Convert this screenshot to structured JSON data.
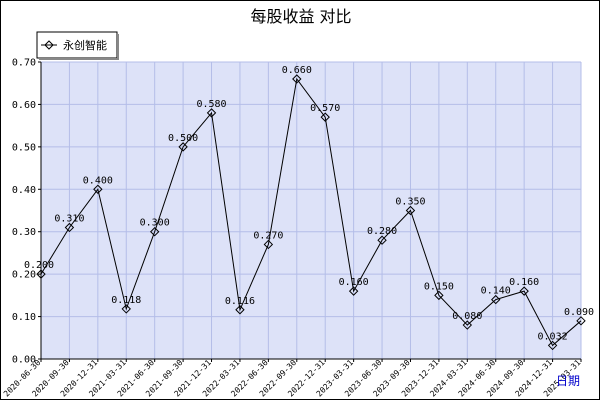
{
  "chart_data": {
    "type": "line",
    "title": "每股收益  对比",
    "xlabel": "日期",
    "ylabel": "",
    "ylim": [
      0,
      0.7
    ],
    "yticks": [
      "0.00",
      "0.10",
      "0.20",
      "0.30",
      "0.40",
      "0.50",
      "0.60",
      "0.70"
    ],
    "grid": true,
    "legend_position": "top-left",
    "plot_background": "#dde2f8",
    "grid_color": "#b4bde8",
    "line_color": "#000000",
    "categories": [
      "2020-06-30",
      "2020-09-30",
      "2020-12-31",
      "2021-03-31",
      "2021-06-30",
      "2021-09-30",
      "2021-12-31",
      "2022-03-31",
      "2022-06-30",
      "2022-09-30",
      "2022-12-31",
      "2023-03-31",
      "2023-06-30",
      "2023-09-30",
      "2023-12-31",
      "2024-03-31",
      "2024-06-30",
      "2024-09-30",
      "2024-12-31",
      "2025-03-31"
    ],
    "series": [
      {
        "name": "永创智能",
        "values": [
          0.2,
          0.31,
          0.4,
          0.118,
          0.3,
          0.5,
          0.58,
          0.116,
          0.27,
          0.66,
          0.57,
          0.16,
          0.28,
          0.35,
          0.15,
          0.08,
          0.14,
          0.16,
          0.032,
          0.09
        ],
        "labels": [
          "0.200",
          "0.310",
          "0.400",
          "0.118",
          "0.300",
          "0.500",
          "0.580",
          "0.116",
          "0.270",
          "0.660",
          "0.570",
          "0.160",
          "0.280",
          "0.350",
          "0.150",
          "0.080",
          "0.140",
          "0.160",
          "0.032",
          "0.090"
        ]
      }
    ]
  }
}
